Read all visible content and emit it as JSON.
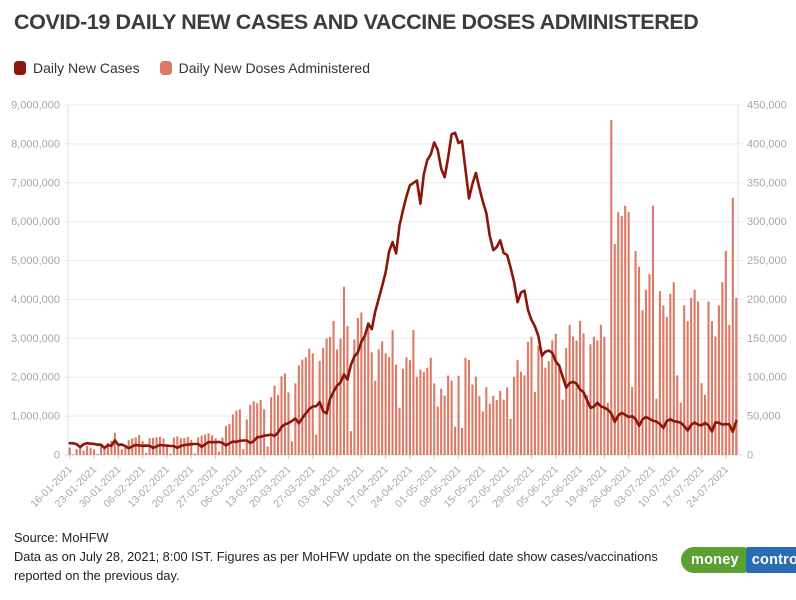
{
  "title": "COVID-19 DAILY NEW CASES AND VACCINE DOSES ADMINISTERED",
  "legend": [
    {
      "label": "Daily New Cases",
      "color": "#8B160A"
    },
    {
      "label": "Daily New Doses Administered",
      "color": "#DB7A66"
    }
  ],
  "footer": {
    "source": "Source: MoHFW",
    "note": "Data as on July 28, 2021; 8:00 IST. Figures as per MoHFW update on the specified date show cases/vaccinations reported on the previous day."
  },
  "logo": {
    "part1": "money",
    "part2": "control",
    "green": "#5BA033",
    "blue": "#2B6DB5"
  },
  "colors": {
    "grid": "#ebebeb",
    "baseline": "#d9d9d9",
    "axis_line": "#e0e0e0",
    "axis_text": "#a6a6a6"
  },
  "chart_data": {
    "type": "bar",
    "subtype": "bar-plus-line-dual-axis",
    "title": "COVID-19 DAILY NEW CASES AND VACCINE DOSES ADMINISTERED",
    "grid": true,
    "legend_position": "top-left",
    "start_date": "16-01-2021",
    "end_date": "27-07-2021",
    "tick_every_days": 7,
    "x_tick_labels": [
      "16-01-2021",
      "23-01-2021",
      "30-01-2021",
      "06-02-2021",
      "13-02-2021",
      "20-02-2021",
      "27-02-2021",
      "06-03-2021",
      "13-03-2021",
      "20-03-2021",
      "27-03-2021",
      "03-04-2021",
      "10-04-2021",
      "17-04-2021",
      "24-04-2021",
      "01-05-2021",
      "08-05-2021",
      "15-05-2021",
      "22-05-2021",
      "29-05-2021",
      "05-06-2021",
      "12-06-2021",
      "19-06-2021",
      "26-06-2021",
      "03-07-2021",
      "10-07-2021",
      "17-07-2021",
      "24-07-2021"
    ],
    "left_axis": {
      "series": "Daily New Doses Administered",
      "min": 0,
      "max": 9000000,
      "step": 1000000
    },
    "right_axis": {
      "series": "Daily New Cases",
      "min": 0,
      "max": 450000,
      "step": 50000
    },
    "series": [
      {
        "name": "Daily New Cases",
        "type": "line",
        "axis": "right",
        "color": "#8B160A",
        "values": [
          15200,
          15100,
          13800,
          10100,
          13800,
          15200,
          14500,
          14300,
          13200,
          13200,
          9100,
          12700,
          11700,
          18900,
          13100,
          13400,
          11400,
          8600,
          11000,
          12900,
          12400,
          11700,
          12100,
          11800,
          9100,
          11000,
          12900,
          12200,
          12100,
          11600,
          11600,
          9100,
          11600,
          12900,
          13200,
          13900,
          14200,
          14200,
          10600,
          13700,
          16700,
          16500,
          16500,
          16800,
          15500,
          12300,
          14900,
          17400,
          16800,
          18300,
          18700,
          18600,
          15400,
          17900,
          22900,
          23300,
          24900,
          25300,
          26300,
          24500,
          28900,
          35900,
          39700,
          40900,
          43800,
          46900,
          40700,
          47300,
          53500,
          59100,
          62300,
          62700,
          68000,
          56200,
          53500,
          72300,
          81500,
          89100,
          93200,
          103600,
          96900,
          115700,
          126800,
          131900,
          145400,
          152900,
          168900,
          161700,
          184400,
          200700,
          217400,
          234700,
          261500,
          273800,
          259200,
          295000,
          314800,
          332700,
          346800,
          349700,
          352900,
          323100,
          360900,
          379300,
          386500,
          401900,
          392500,
          368100,
          357200,
          382300,
          412300,
          414200,
          401100,
          403700,
          366500,
          329900,
          348400,
          362700,
          343100,
          326100,
          311200,
          281400,
          263500,
          267300,
          276100,
          259600,
          257300,
          240800,
          222300,
          196400,
          208900,
          211300,
          186400,
          173800,
          165600,
          152700,
          127500,
          132800,
          134200,
          131400,
          120500,
          114500,
          100600,
          86500,
          92600,
          94100,
          91700,
          84300,
          80800,
          70400,
          60500,
          62200,
          67200,
          62500,
          60800,
          58400,
          53300,
          42600,
          50800,
          54100,
          51700,
          48700,
          50000,
          46100,
          37600,
          45900,
          48800,
          46600,
          44100,
          43100,
          39800,
          34700,
          43700,
          45900,
          43400,
          42800,
          41500,
          37200,
          31400,
          38800,
          41800,
          38900,
          38100,
          41200,
          38200,
          30100,
          42000,
          41400,
          39100,
          39700,
          39400,
          29700,
          43700
        ]
      },
      {
        "name": "Daily New Doses Administered",
        "type": "bar",
        "axis": "left",
        "color": "#DB7A66",
        "values": [
          191000,
          17000,
          148000,
          204000,
          112000,
          237000,
          192000,
          146000,
          27000,
          284000,
          162000,
          309000,
          363000,
          572000,
          247000,
          146000,
          195000,
          380000,
          429000,
          455000,
          512000,
          361000,
          58000,
          432000,
          442000,
          452000,
          468000,
          423000,
          212000,
          34000,
          448000,
          478000,
          432000,
          441000,
          468000,
          382000,
          41000,
          452000,
          498000,
          522000,
          558000,
          508000,
          432000,
          88000,
          446000,
          748000,
          796000,
          1042000,
          1142000,
          1175000,
          152000,
          912000,
          1294000,
          1382000,
          1332000,
          1418000,
          1178000,
          215000,
          1486000,
          1782000,
          1542000,
          2024000,
          2093000,
          1608000,
          352000,
          1842000,
          2302000,
          2454000,
          2510000,
          2736000,
          2612000,
          523000,
          2422000,
          2752000,
          2996000,
          3036000,
          3448000,
          2712000,
          2994000,
          4327000,
          3314000,
          612000,
          2968000,
          3522000,
          3664000,
          3008000,
          3328000,
          2642000,
          1912000,
          2716000,
          2924000,
          2612000,
          2524000,
          3208000,
          2324000,
          1216000,
          2218000,
          2512000,
          2438000,
          3214000,
          2012000,
          2196000,
          2134000,
          2246000,
          2502000,
          1842000,
          1246000,
          1708000,
          1528000,
          2042000,
          1912000,
          724000,
          2038000,
          696000,
          2498000,
          2446000,
          1812000,
          2016000,
          1512000,
          1124000,
          1746000,
          1318000,
          1524000,
          1412000,
          1648000,
          1424000,
          1738000,
          926000,
          2012000,
          2438000,
          2142000,
          2046000,
          2912000,
          3042000,
          1624000,
          2812000,
          2624000,
          2248000,
          2412000,
          2948000,
          3118000,
          2342000,
          1424000,
          2748000,
          3342000,
          3048000,
          2942000,
          3448000,
          3124000,
          1538000,
          2848000,
          3042000,
          2948000,
          3348000,
          3042000,
          1342000,
          8612000,
          5424000,
          6242000,
          6148000,
          6412000,
          6248000,
          1748000,
          5248000,
          4842000,
          3724000,
          4248000,
          4648000,
          6412000,
          1448000,
          4212000,
          3848000,
          3548000,
          4148000,
          4442000,
          2048000,
          1348000,
          3848000,
          3442000,
          4042000,
          4248000,
          3948000,
          1848000,
          1548000,
          3948000,
          3442000,
          3048000,
          3848000,
          4442000,
          5248000,
          3342000,
          6612000,
          4042000
        ]
      }
    ]
  }
}
